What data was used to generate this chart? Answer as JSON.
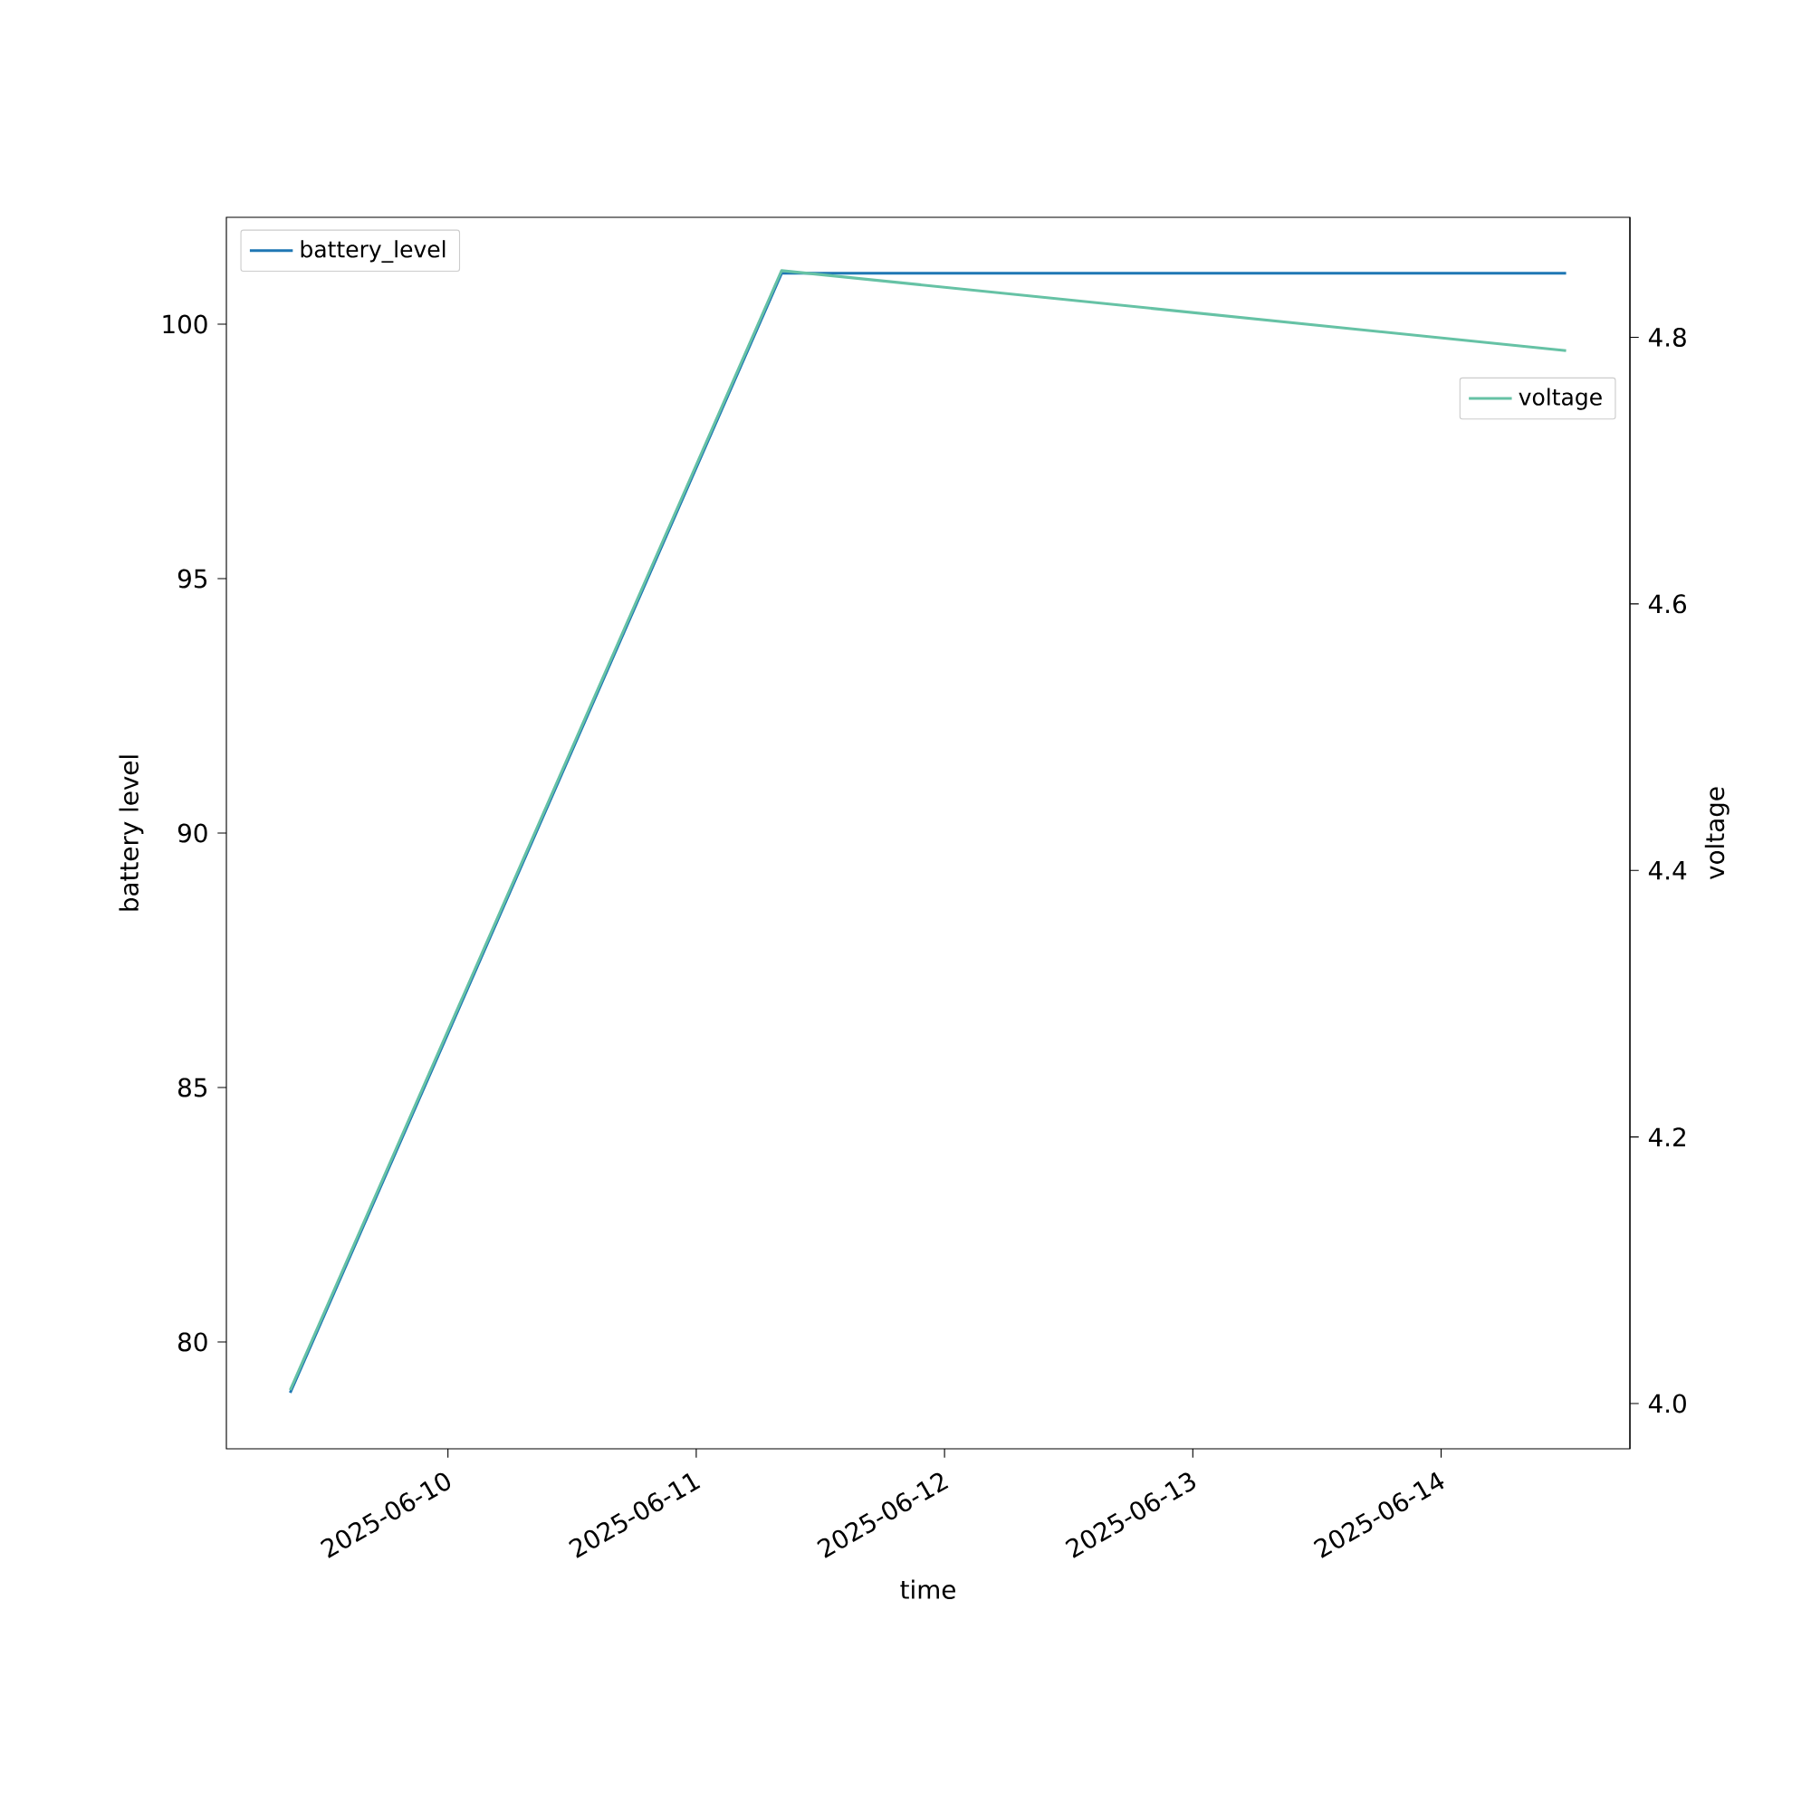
{
  "chart_data": {
    "type": "line",
    "xlabel": "time",
    "ylabel": "battery level",
    "y2label": "voltage",
    "x": [
      "2025-06-09T08:45",
      "2025-06-11T08:15",
      "2025-06-14T12:05"
    ],
    "series": [
      {
        "name": "battery_level",
        "color": "#1f77b4",
        "values": [
          79,
          101,
          101
        ]
      },
      {
        "name": "voltage",
        "color": "#66c2a5",
        "values": [
          4.01,
          4.85,
          4.79
        ],
        "axis": "y2"
      }
    ],
    "xlim": [
      "2025-06-09T02:35",
      "2025-06-14T18:15"
    ],
    "xticks": [
      "2025-06-10",
      "2025-06-11",
      "2025-06-12",
      "2025-06-13",
      "2025-06-14"
    ],
    "ylim": [
      77.9,
      102.1
    ],
    "yticks": [
      80,
      85,
      90,
      95,
      100
    ],
    "y2lim": [
      3.966,
      4.89
    ],
    "y2ticks": [
      {
        "value": 4.0,
        "label": "4.0"
      },
      4.2,
      4.4,
      4.6,
      4.8
    ],
    "grid": false,
    "legend": "top",
    "line_style": "solid",
    "marker": "none"
  }
}
